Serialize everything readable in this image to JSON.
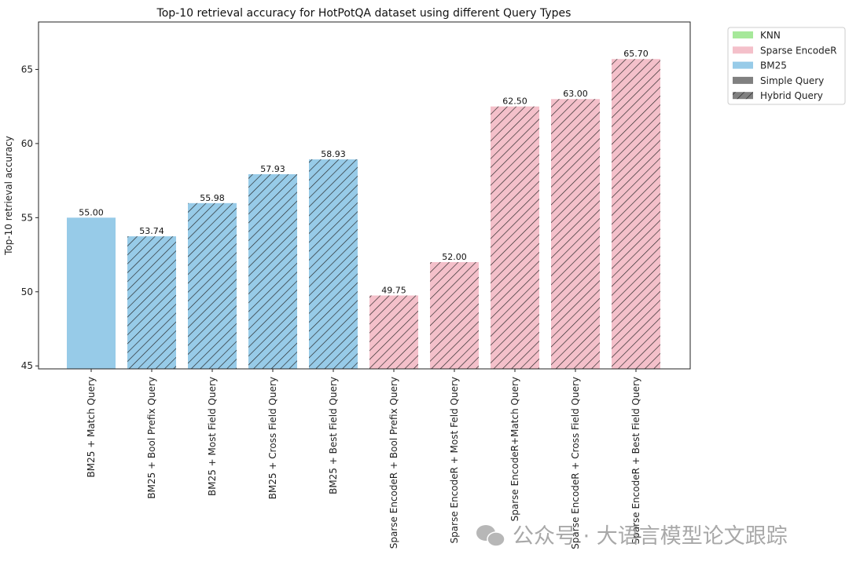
{
  "chart_data": {
    "type": "bar",
    "title": "Top-10 retrieval accuracy for HotPotQA dataset using different Query Types",
    "xlabel": "",
    "ylabel": "Top-10 retrieval accuracy",
    "ylim": [
      44.8,
      68.2
    ],
    "yticks": [
      45,
      50,
      55,
      60,
      65
    ],
    "grid": false,
    "categories": [
      "BM25 + Match Query",
      "BM25 + Bool Prefix Query",
      "BM25 + Most Field Query",
      "BM25 + Cross Field Query",
      "BM25 + Best Field Query",
      "Sparse EncodeR  +  Bool Prefix Query",
      "Sparse EncodeR + Most  Feld Query",
      "Sparse EncodeR+Match Query",
      "Sparse EncodeR  +  Cross Field Query",
      "Sparse EncodeR +  Best Field Query"
    ],
    "values": [
      55.0,
      53.74,
      55.98,
      57.93,
      58.93,
      49.75,
      52.0,
      62.5,
      63.0,
      65.7
    ],
    "value_labels": [
      "55.00",
      "53.74",
      "55.98",
      "57.93",
      "58.93",
      "49.75",
      "52.00",
      "62.50",
      "63.00",
      "65.70"
    ],
    "method": [
      "BM25",
      "BM25",
      "BM25",
      "BM25",
      "BM25",
      "Sparse EncodeR",
      "Sparse EncodeR",
      "Sparse EncodeR",
      "Sparse EncodeR",
      "Sparse EncodeR"
    ],
    "query_type": [
      "Simple",
      "Hybrid",
      "Hybrid",
      "Hybrid",
      "Hybrid",
      "Hybrid",
      "Hybrid",
      "Hybrid",
      "Hybrid",
      "Hybrid"
    ],
    "colors": {
      "KNN": "#a6e89a",
      "Sparse EncodeR": "#f4c0ca",
      "BM25": "#97cbe8",
      "Simple": "#808080",
      "Hybrid": "#808080"
    },
    "legend_position": "outside-top-right",
    "legend": [
      {
        "label": "KNN",
        "color": "#a6e89a",
        "hatch": false
      },
      {
        "label": "Sparse EncodeR",
        "color": "#f4c0ca",
        "hatch": false
      },
      {
        "label": "BM25",
        "color": "#97cbe8",
        "hatch": false
      },
      {
        "label": "Simple Query",
        "color": "#808080",
        "hatch": false
      },
      {
        "label": "Hybrid Query",
        "color": "#808080",
        "hatch": true
      }
    ]
  },
  "watermark": "公众号 · 大语言模型论文跟踪"
}
